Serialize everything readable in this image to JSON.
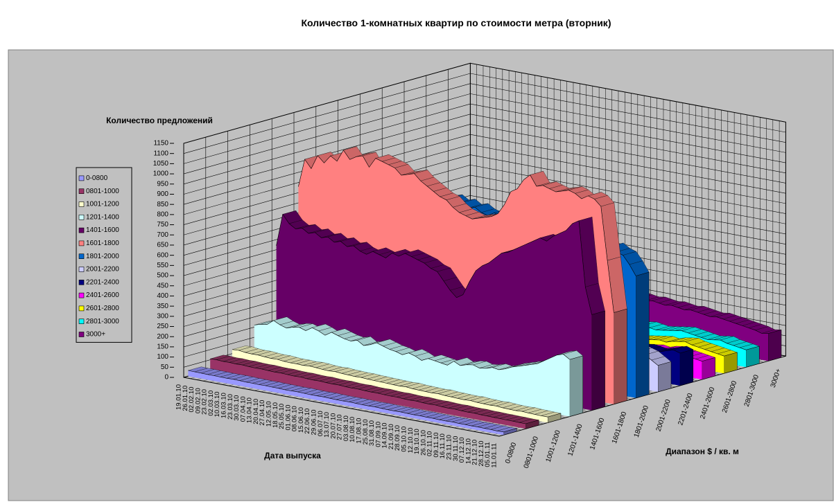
{
  "chart_data": {
    "type": "area3d",
    "title": "Количество 1-комнатных квартир по стоимости метра (вторник)",
    "y_label": "Количество предложений",
    "x_label": "Дата выпуска",
    "z_label": "Диапазон $ / кв. м",
    "ylim": [
      0,
      1150
    ],
    "yticks": [
      0,
      50,
      100,
      150,
      200,
      250,
      300,
      350,
      400,
      450,
      500,
      550,
      600,
      650,
      700,
      750,
      800,
      850,
      900,
      950,
      1000,
      1050,
      1100,
      1150
    ],
    "grid": true,
    "legend": "left",
    "categories": [
      "19.01.10",
      "26.01.10",
      "02.02.10",
      "09.02.10",
      "23.02.10",
      "02.03.10",
      "10.03.10",
      "16.03.10",
      "23.03.10",
      "30.03.10",
      "07.04.10",
      "13.04.10",
      "20.04.10",
      "27.04.10",
      "12.05.10",
      "18.05.10",
      "25.05.10",
      "01.06.10",
      "08.06.10",
      "15.06.10",
      "22.06.10",
      "29.06.10",
      "06.07.10",
      "13.07.10",
      "20.07.10",
      "27.07.10",
      "03.08.10",
      "10.08.10",
      "17.08.10",
      "25.08.10",
      "31.08.10",
      "07.09.10",
      "14.09.10",
      "21.09.10",
      "28.09.10",
      "05.10.10",
      "12.10.10",
      "19.10.10",
      "26.10.10",
      "02.11.10",
      "09.11.10",
      "16.11.10",
      "23.11.10",
      "30.11.10",
      "07.12.10",
      "14.12.10",
      "21.12.10",
      "28.12.10",
      "05.01.11",
      "11.01.11"
    ],
    "series": [
      {
        "name": "0-0800",
        "color": "#9999ff",
        "values": [
          28,
          27,
          27,
          26,
          26,
          25,
          25,
          26,
          25,
          24,
          24,
          23,
          24,
          23,
          23,
          22,
          22,
          23,
          22,
          21,
          21,
          22,
          21,
          20,
          20,
          21,
          20,
          19,
          19,
          20,
          19,
          18,
          18,
          19,
          18,
          17,
          18,
          17,
          17,
          16,
          16,
          17,
          16,
          16,
          15,
          16,
          15,
          15,
          14,
          15
        ]
      },
      {
        "name": "0801-1000",
        "color": "#993366",
        "values": [
          55,
          56,
          54,
          55,
          53,
          54,
          52,
          51,
          52,
          50,
          49,
          50,
          48,
          47,
          48,
          46,
          45,
          46,
          44,
          43,
          44,
          42,
          41,
          42,
          40,
          39,
          40,
          38,
          37,
          38,
          36,
          35,
          36,
          34,
          33,
          34,
          32,
          31,
          32,
          30,
          29,
          30,
          28,
          28,
          27,
          27,
          26,
          26,
          25,
          25
        ]
      },
      {
        "name": "1001-1200",
        "color": "#ffffcc",
        "values": [
          70,
          72,
          68,
          66,
          67,
          64,
          62,
          63,
          60,
          58,
          59,
          57,
          60,
          58,
          55,
          54,
          56,
          53,
          52,
          50,
          51,
          49,
          48,
          47,
          46,
          45,
          44,
          46,
          43,
          42,
          41,
          40,
          42,
          39,
          38,
          37,
          36,
          38,
          35,
          34,
          33,
          35,
          32,
          31,
          30,
          32,
          30,
          29,
          28,
          28
        ]
      },
      {
        "name": "1201-1400",
        "color": "#ccffff",
        "values": [
          160,
          170,
          175,
          200,
          185,
          175,
          185,
          190,
          180,
          200,
          190,
          175,
          195,
          185,
          175,
          170,
          180,
          160,
          170,
          185,
          175,
          165,
          160,
          150,
          165,
          155,
          140,
          155,
          150,
          145,
          140,
          165,
          150,
          160,
          165,
          155,
          160,
          170,
          165,
          175,
          190,
          200,
          210,
          220,
          230,
          250,
          270,
          290,
          300,
          280
        ]
      },
      {
        "name": "1401-1600",
        "color": "#660066",
        "values": [
          520,
          680,
          640,
          620,
          630,
          610,
          620,
          600,
          610,
          590,
          600,
          580,
          590,
          570,
          560,
          580,
          570,
          560,
          590,
          580,
          600,
          590,
          580,
          570,
          550,
          540,
          500,
          460,
          430,
          450,
          520,
          580,
          610,
          630,
          660,
          690,
          700,
          720,
          740,
          760,
          780,
          800,
          790,
          820,
          840,
          860,
          900,
          920,
          600,
          470
        ]
      },
      {
        "name": "1601-1800",
        "color": "#ff8080",
        "values": [
          780,
          920,
          880,
          950,
          920,
          960,
          940,
          1000,
          960,
          980,
          990,
          940,
          990,
          980,
          970,
          960,
          930,
          940,
          950,
          920,
          900,
          880,
          860,
          850,
          820,
          800,
          790,
          780,
          790,
          800,
          810,
          830,
          880,
          950,
          970,
          1020,
          1050,
          1000,
          1010,
          1000,
          990,
          1000,
          1010,
          1000,
          980,
          1000,
          990,
          960,
          700,
          450
        ]
      },
      {
        "name": "1801-2000",
        "color": "#0066cc",
        "values": [
          820,
          830,
          840,
          850,
          830,
          860,
          850,
          870,
          860,
          850,
          840,
          860,
          850,
          830,
          840,
          820,
          830,
          810,
          820,
          800,
          810,
          790,
          800,
          780,
          790,
          770,
          760,
          780,
          770,
          760,
          750,
          770,
          760,
          780,
          770,
          760,
          750,
          740,
          750,
          730,
          740,
          720,
          730,
          710,
          700,
          720,
          700,
          690,
          650,
          600
        ]
      },
      {
        "name": "2001-2200",
        "color": "#ccccff",
        "values": [
          260,
          270,
          265,
          280,
          275,
          270,
          280,
          285,
          275,
          270,
          265,
          275,
          270,
          260,
          265,
          255,
          260,
          250,
          255,
          245,
          250,
          240,
          245,
          235,
          240,
          230,
          235,
          225,
          230,
          220,
          225,
          215,
          220,
          210,
          215,
          205,
          210,
          200,
          205,
          200,
          195,
          200,
          190,
          195,
          185,
          190,
          180,
          170,
          150,
          130
        ]
      },
      {
        "name": "2201-2400",
        "color": "#000080",
        "values": [
          180,
          185,
          190,
          185,
          180,
          190,
          185,
          180,
          175,
          180,
          175,
          170,
          175,
          180,
          175,
          170,
          165,
          170,
          175,
          170,
          165,
          160,
          165,
          170,
          165,
          160,
          155,
          160,
          165,
          160,
          155,
          150,
          155,
          160,
          155,
          150,
          145,
          150,
          155,
          150,
          145,
          140,
          145,
          150,
          145,
          140,
          150,
          160,
          170,
          160
        ]
      },
      {
        "name": "2401-2600",
        "color": "#ff00ff",
        "values": [
          120,
          125,
          120,
          115,
          120,
          125,
          120,
          115,
          110,
          115,
          120,
          115,
          110,
          115,
          110,
          105,
          110,
          115,
          110,
          105,
          100,
          105,
          110,
          105,
          100,
          95,
          100,
          105,
          100,
          95,
          90,
          95,
          100,
          95,
          90,
          95,
          100,
          95,
          90,
          95,
          100,
          105,
          100,
          110,
          115,
          110,
          105,
          100,
          95,
          90
        ]
      },
      {
        "name": "2601-2800",
        "color": "#ffff00",
        "values": [
          90,
          95,
          100,
          95,
          90,
          95,
          100,
          95,
          90,
          95,
          100,
          95,
          90,
          85,
          90,
          95,
          90,
          85,
          90,
          95,
          90,
          85,
          80,
          85,
          90,
          85,
          80,
          85,
          90,
          85,
          80,
          85,
          90,
          95,
          90,
          85,
          90,
          95,
          100,
          105,
          100,
          110,
          115,
          120,
          110,
          105,
          100,
          95,
          90,
          85
        ]
      },
      {
        "name": "2801-3000",
        "color": "#00ffff",
        "values": [
          100,
          105,
          110,
          105,
          100,
          110,
          115,
          110,
          105,
          110,
          105,
          100,
          105,
          110,
          105,
          100,
          105,
          110,
          115,
          110,
          105,
          100,
          95,
          100,
          105,
          100,
          95,
          100,
          105,
          100,
          95,
          100,
          105,
          110,
          105,
          100,
          105,
          110,
          115,
          120,
          115,
          110,
          105,
          100,
          105,
          110,
          100,
          95,
          90,
          85
        ]
      },
      {
        "name": "3000+",
        "color": "#800080",
        "values": [
          190,
          200,
          210,
          205,
          200,
          210,
          220,
          215,
          210,
          205,
          210,
          220,
          215,
          210,
          205,
          200,
          210,
          205,
          200,
          195,
          200,
          210,
          205,
          200,
          195,
          190,
          195,
          200,
          195,
          190,
          185,
          190,
          185,
          180,
          185,
          180,
          175,
          180,
          175,
          170,
          165,
          170,
          165,
          160,
          155,
          150,
          145,
          140,
          130,
          135
        ]
      }
    ]
  }
}
